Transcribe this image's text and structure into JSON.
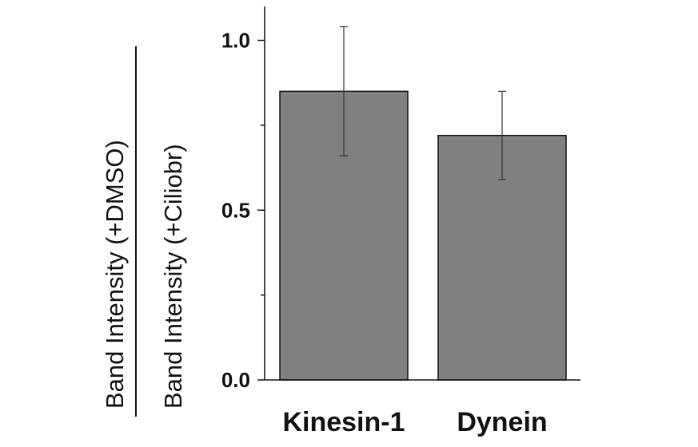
{
  "chart_data": {
    "type": "bar",
    "title": "",
    "categories": [
      "Kinesin-1",
      "Dynein"
    ],
    "values": [
      0.85,
      0.72
    ],
    "error": [
      0.19,
      0.13
    ],
    "ylim": [
      0,
      1.1
    ],
    "yticks": [
      "0.0",
      "0.5",
      "1.0"
    ],
    "xlabel": "",
    "ylabel": {
      "numerator": "Band Intensity (+DMSO)",
      "denominator": "Band Intensity (+Ciliobr)"
    },
    "grid": false,
    "bar_color": "#808080"
  }
}
